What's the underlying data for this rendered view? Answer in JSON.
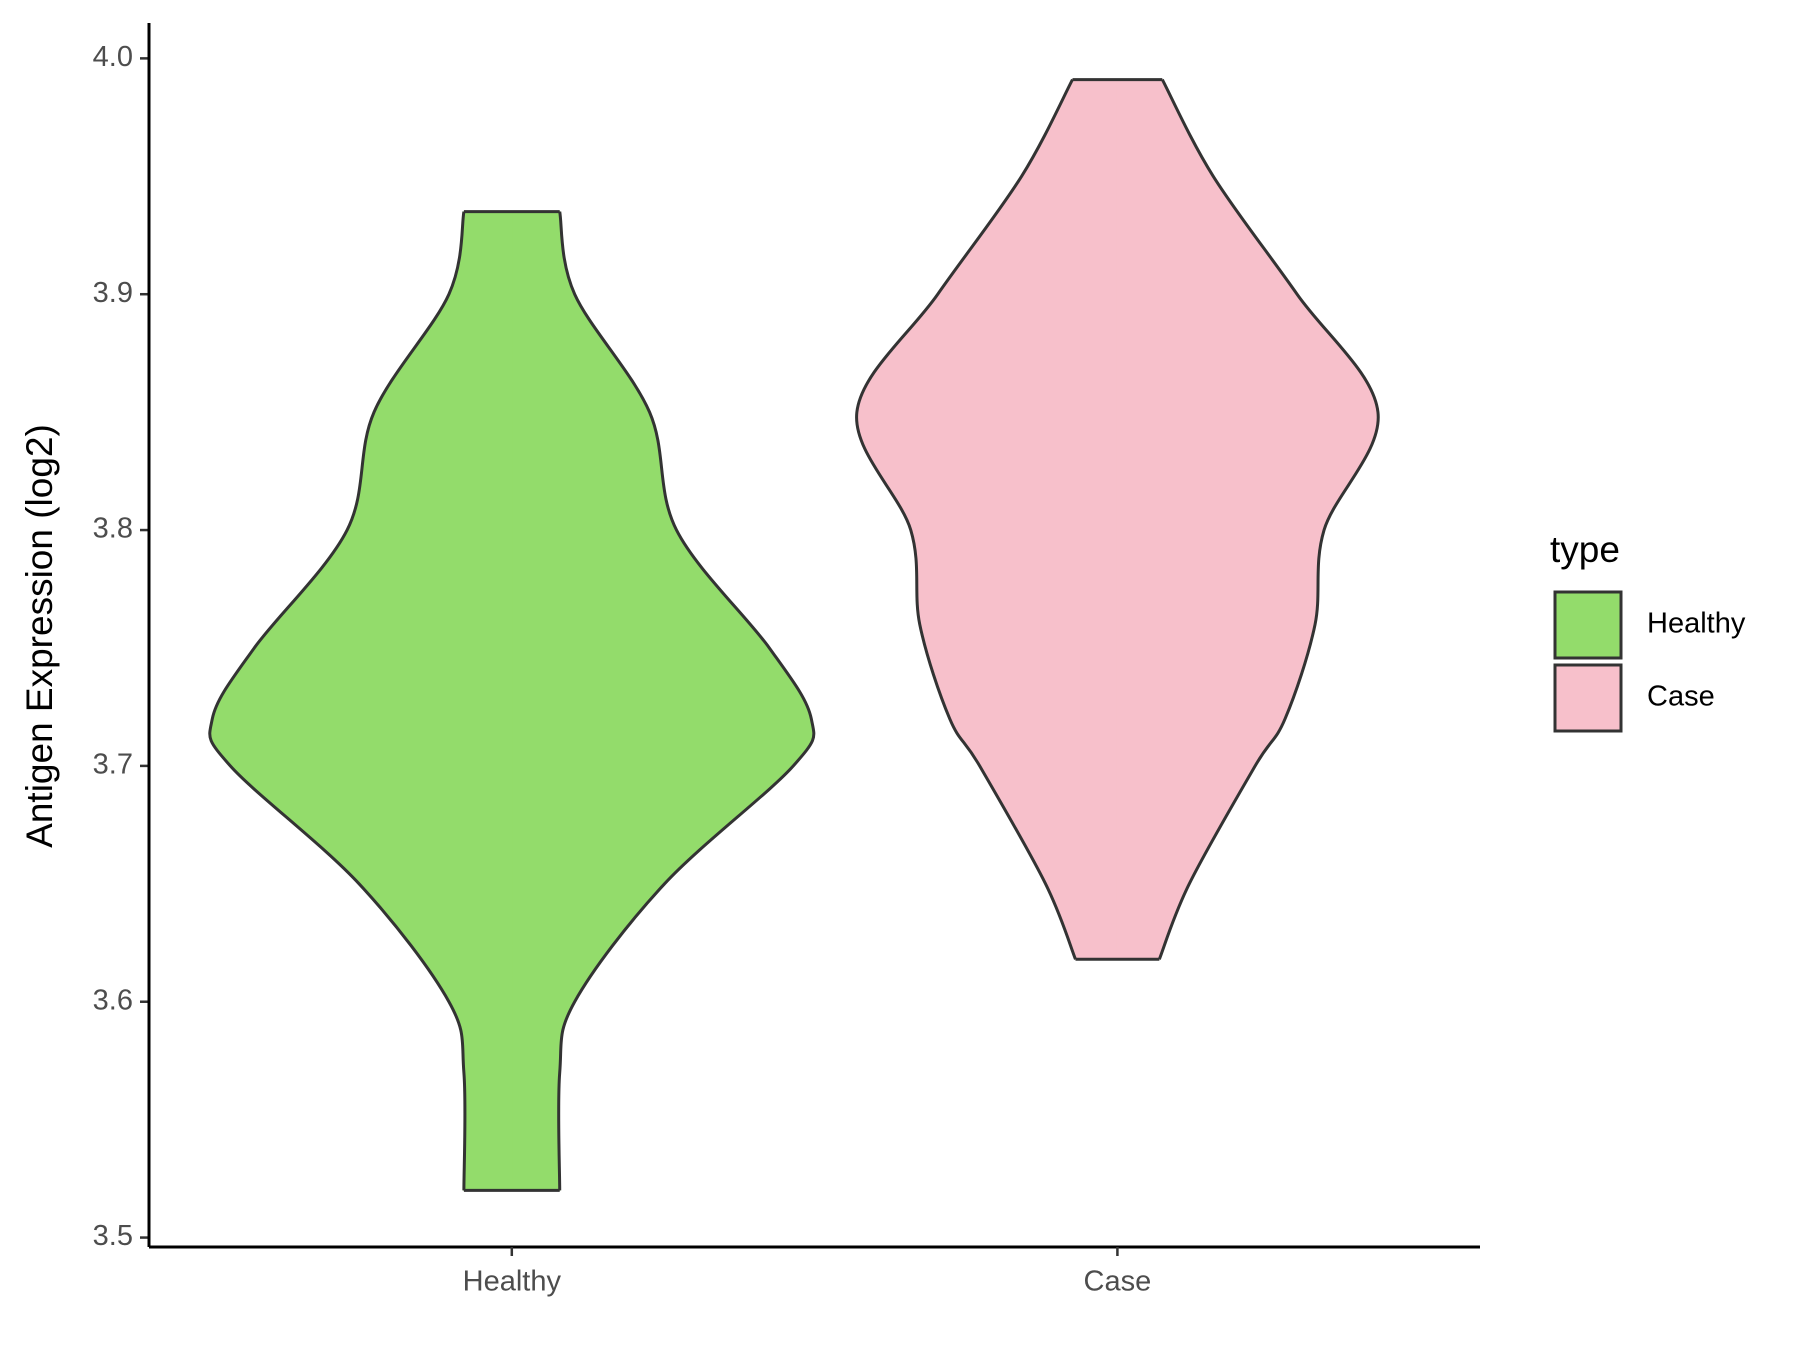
{
  "chart_data": {
    "type": "violin",
    "y_label": "Antigen Expression (log2)",
    "categories": [
      "Healthy",
      "Case"
    ],
    "legend_title": "type",
    "legend_position": "right",
    "ylim": [
      3.496,
      4.015
    ],
    "yticks": [
      3.5,
      3.6,
      3.7,
      3.8,
      3.9,
      {
        "value": 4,
        "label": "4.0"
      }
    ],
    "series": [
      {
        "name": "Healthy",
        "color": "#93dc6b",
        "y": [
          3.52,
          3.57,
          3.6,
          3.65,
          3.7,
          3.72,
          3.75,
          3.8,
          3.85,
          3.9,
          3.935
        ],
        "width": [
          0.16,
          0.16,
          0.21,
          0.51,
          0.94,
          1.0,
          0.86,
          0.55,
          0.46,
          0.21,
          0.16
        ]
      },
      {
        "name": "Case",
        "color": "#f7c0cb",
        "y": [
          3.618,
          3.65,
          3.7,
          3.72,
          3.76,
          3.8,
          3.85,
          3.9,
          3.95,
          3.991
        ],
        "width": [
          0.14,
          0.24,
          0.46,
          0.56,
          0.66,
          0.69,
          0.87,
          0.6,
          0.32,
          0.15
        ]
      }
    ]
  }
}
